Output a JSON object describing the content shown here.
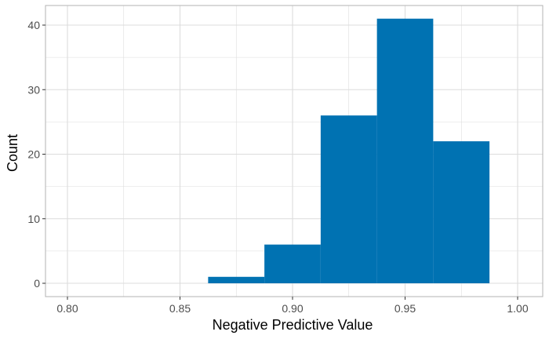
{
  "chart_data": {
    "type": "bar",
    "chart_kind": "histogram",
    "xlabel": "Negative Predictive Value",
    "ylabel": "Count",
    "xlim": [
      0.8,
      1.0
    ],
    "ylim": [
      0,
      41
    ],
    "grid": true,
    "legend": "none",
    "bin_width": 0.025,
    "bins": [
      {
        "start": 0.8625,
        "end": 0.8875,
        "count": 1
      },
      {
        "start": 0.8875,
        "end": 0.9125,
        "count": 6
      },
      {
        "start": 0.9125,
        "end": 0.9375,
        "count": 26
      },
      {
        "start": 0.9375,
        "end": 0.9625,
        "count": 41
      },
      {
        "start": 0.9625,
        "end": 0.9875,
        "count": 22
      }
    ],
    "x_ticks": [
      {
        "value": 0.8,
        "label": "0.80"
      },
      {
        "value": 0.85,
        "label": "0.85"
      },
      {
        "value": 0.9,
        "label": "0.90"
      },
      {
        "value": 0.95,
        "label": "0.95"
      },
      {
        "value": 1.0,
        "label": "1.00"
      }
    ],
    "y_ticks": [
      {
        "value": 0,
        "label": "0"
      },
      {
        "value": 10,
        "label": "10"
      },
      {
        "value": 20,
        "label": "20"
      },
      {
        "value": 30,
        "label": "30"
      },
      {
        "value": 40,
        "label": "40"
      }
    ],
    "colors": {
      "bar": "#0072B2",
      "grid": "#dcdcdc",
      "panel_border": "#b3b3b3"
    }
  }
}
